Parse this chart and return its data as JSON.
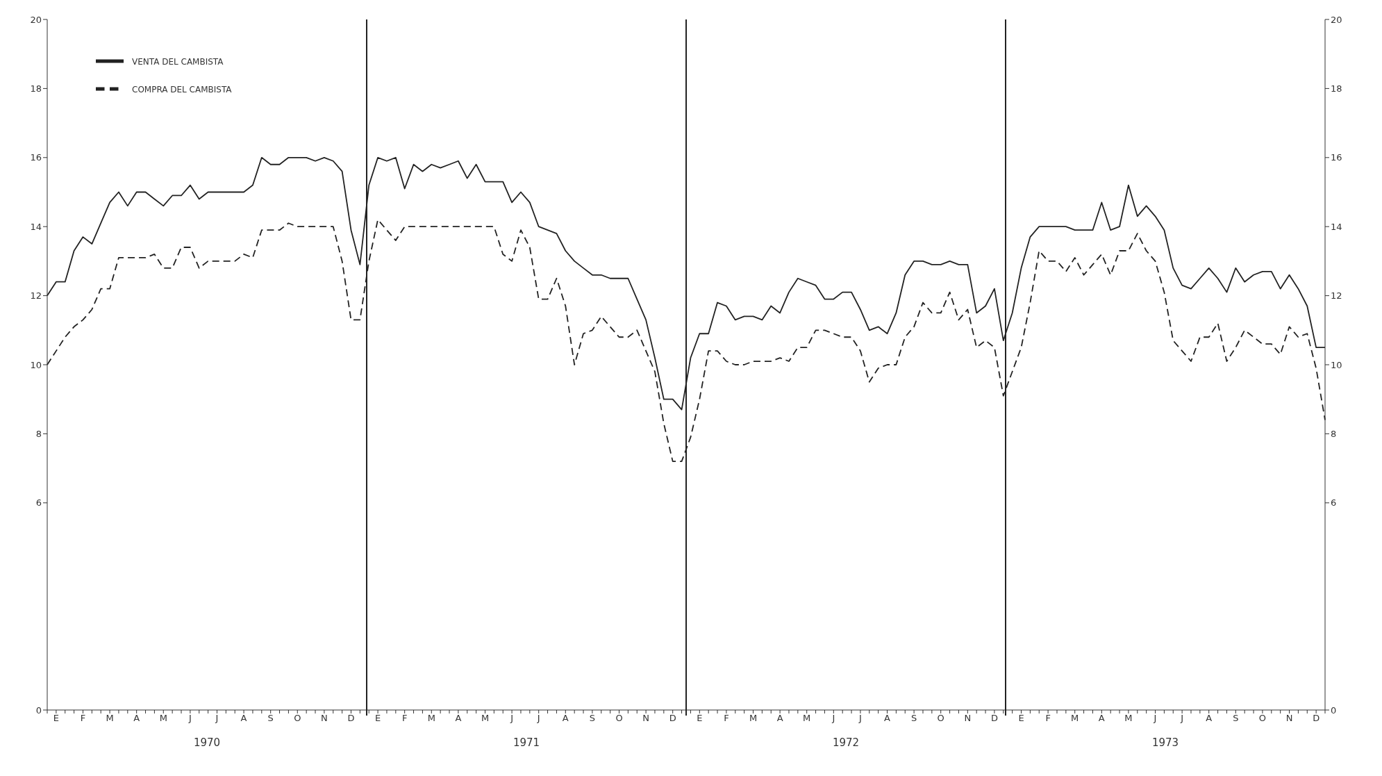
{
  "chart_data": {
    "type": "line",
    "ylim": [
      0,
      20
    ],
    "yticks": [
      0,
      6,
      8,
      10,
      12,
      14,
      16,
      18,
      20
    ],
    "y2lim": [
      0,
      20
    ],
    "y2ticks": [
      0,
      6,
      8,
      10,
      12,
      14,
      16,
      18,
      20
    ],
    "categories": [
      null,
      "E",
      null,
      null,
      "F",
      null,
      null,
      "M",
      null,
      null,
      "A",
      null,
      null,
      "M",
      null,
      null,
      "J",
      null,
      null,
      "J",
      null,
      null,
      "A",
      null,
      null,
      "S",
      null,
      null,
      "O",
      null,
      null,
      "N",
      null,
      null,
      "D",
      null,
      null,
      "E",
      null,
      null,
      "F",
      null,
      null,
      "M",
      null,
      null,
      "A",
      null,
      null,
      "M",
      null,
      null,
      "J",
      null,
      null,
      "J",
      null,
      null,
      "A",
      null,
      null,
      "S",
      null,
      null,
      "O",
      null,
      null,
      "N",
      null,
      null,
      "D",
      null,
      null,
      "E",
      null,
      null,
      "F",
      null,
      null,
      "M",
      null,
      null,
      "A",
      null,
      null,
      "M",
      null,
      null,
      "J",
      null,
      null,
      "J",
      null,
      null,
      "A",
      null,
      null,
      "S",
      null,
      null,
      "O",
      null,
      null,
      "N",
      null,
      null,
      "D",
      null,
      null,
      "E",
      null,
      null,
      "F",
      null,
      null,
      "M",
      null,
      null,
      "A",
      null,
      null,
      "M",
      null,
      null,
      "J",
      null,
      null,
      "J",
      null,
      null,
      "A",
      null,
      null,
      "S",
      null,
      null,
      "O",
      null,
      null,
      "N",
      null,
      null,
      "D",
      null
    ],
    "annotations": [
      "1970",
      "1971",
      "1972",
      "1973"
    ],
    "legend": "top left",
    "series": [
      {
        "name": "VENTA DEL CAMBISTA",
        "color": "#222222",
        "line_style": "solid",
        "values": [
          12.0,
          12.4,
          12.4,
          13.3,
          13.7,
          13.5,
          14.1,
          14.7,
          15.0,
          14.6,
          15.0,
          15.0,
          14.8,
          14.6,
          14.9,
          14.9,
          15.2,
          14.8,
          15.0,
          15.0,
          15.0,
          15.0,
          15.0,
          15.2,
          16.0,
          15.8,
          15.8,
          16.0,
          16.0,
          16.0,
          15.9,
          16.0,
          15.9,
          15.6,
          13.9,
          12.9,
          15.2,
          16.0,
          15.9,
          16.0,
          15.1,
          15.8,
          15.6,
          15.8,
          15.7,
          15.8,
          15.9,
          15.4,
          15.8,
          15.3,
          15.3,
          15.3,
          14.7,
          15.0,
          14.7,
          14.0,
          13.9,
          13.8,
          13.3,
          13.0,
          12.8,
          12.6,
          12.6,
          12.5,
          12.5,
          12.5,
          11.9,
          11.3,
          10.2,
          9.0,
          9.0,
          8.7,
          10.2,
          10.9,
          10.9,
          11.8,
          11.7,
          11.3,
          11.4,
          11.4,
          11.3,
          11.7,
          11.5,
          12.1,
          12.5,
          12.4,
          12.3,
          11.9,
          11.9,
          12.1,
          12.1,
          11.6,
          11.0,
          11.1,
          10.9,
          11.5,
          12.6,
          13.0,
          13.0,
          12.9,
          12.9,
          13.0,
          12.9,
          12.9,
          11.5,
          11.7,
          12.2,
          10.7,
          11.5,
          12.8,
          13.7,
          14.0,
          14.0,
          14.0,
          14.0,
          13.9,
          13.9,
          13.9,
          14.7,
          13.9,
          14.0,
          15.2,
          14.3,
          14.6,
          14.3,
          13.9,
          12.8,
          12.3,
          12.2,
          12.5,
          12.8,
          12.5,
          12.1,
          12.8,
          12.4,
          12.6,
          12.7,
          12.7,
          12.2,
          12.6,
          12.2,
          11.7,
          10.5,
          10.5
        ]
      },
      {
        "name": "COMPRA DEL CAMBISTA",
        "color": "#222222",
        "line_style": "dashed",
        "values": [
          10.0,
          10.4,
          10.8,
          11.1,
          11.3,
          11.6,
          12.2,
          12.2,
          13.1,
          13.1,
          13.1,
          13.1,
          13.2,
          12.8,
          12.8,
          13.4,
          13.4,
          12.8,
          13.0,
          13.0,
          13.0,
          13.0,
          13.2,
          13.1,
          13.9,
          13.9,
          13.9,
          14.1,
          14.0,
          14.0,
          14.0,
          14.0,
          14.0,
          13.0,
          11.3,
          11.3,
          13.0,
          14.2,
          13.9,
          13.6,
          14.0,
          14.0,
          14.0,
          14.0,
          14.0,
          14.0,
          14.0,
          14.0,
          14.0,
          14.0,
          14.0,
          13.2,
          13.0,
          13.9,
          13.4,
          11.9,
          11.9,
          12.5,
          11.7,
          10.0,
          10.9,
          11.0,
          11.4,
          11.1,
          10.8,
          10.8,
          11.0,
          10.4,
          9.8,
          8.3,
          7.2,
          7.2,
          7.9,
          9.0,
          10.4,
          10.4,
          10.1,
          10.0,
          10.0,
          10.1,
          10.1,
          10.1,
          10.2,
          10.1,
          10.5,
          10.5,
          11.0,
          11.0,
          10.9,
          10.8,
          10.8,
          10.4,
          9.5,
          9.9,
          10.0,
          10.0,
          10.8,
          11.1,
          11.8,
          11.5,
          11.5,
          12.1,
          11.3,
          11.6,
          10.5,
          10.7,
          10.5,
          9.1,
          9.8,
          10.5,
          11.8,
          13.3,
          13.0,
          13.0,
          12.7,
          13.1,
          12.6,
          12.9,
          13.2,
          12.6,
          13.3,
          13.3,
          13.8,
          13.3,
          13.0,
          12.1,
          10.7,
          10.4,
          10.1,
          10.8,
          10.8,
          11.2,
          10.1,
          10.5,
          11.0,
          10.8,
          10.6,
          10.6,
          10.3,
          11.1,
          10.8,
          10.9,
          9.9,
          8.4
        ]
      }
    ]
  }
}
